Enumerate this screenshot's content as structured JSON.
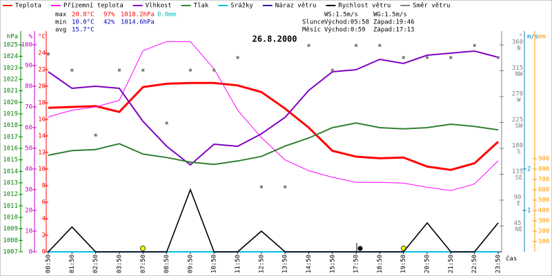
{
  "chart_data": {
    "type": "line",
    "title": "26.8.2000",
    "x_label": "čas",
    "categories": [
      "00:50",
      "01:50",
      "02:50",
      "03:50",
      "07:50",
      "08:50",
      "09:50",
      "10:50",
      "11:50",
      "12:50",
      "13:50",
      "14:50",
      "15:50",
      "17:50",
      "18:50",
      "19:50",
      "20:50",
      "21:50",
      "22:50",
      "23:50"
    ],
    "stats": [
      [
        "max",
        "20.8°C",
        "97%",
        "1018.2hPa",
        "0.0mm"
      ],
      [
        "min",
        "10.0°C",
        "42%",
        "1014.6hPa"
      ],
      [
        "avg",
        "15.7°C"
      ]
    ],
    "info": [
      [
        "WS:1.5m/s",
        "WG:1.5m/s"
      ],
      [
        "Slunce",
        "Východ:05:58",
        "Západ:19:46"
      ],
      [
        "Měsíc",
        "Východ:0:59",
        "Západ:17:13"
      ]
    ],
    "axes": {
      "p": {
        "unit": "hPa",
        "color": "#008000",
        "lim": [
          1007,
          1026.2
        ],
        "ticks": [
          1007,
          1008,
          1009,
          1010,
          1011,
          1012,
          1013,
          1014,
          1015,
          1016,
          1017,
          1018,
          1019,
          1020,
          1021,
          1022,
          1023,
          1024,
          1025
        ]
      },
      "h": {
        "unit": "%",
        "color": "#c000c0",
        "lim": [
          0,
          106.67
        ],
        "ticks": [
          0,
          10,
          20,
          30,
          40,
          50,
          60,
          70,
          80,
          90,
          100
        ]
      },
      "t": {
        "unit": "°C",
        "color": "#ff0000",
        "lim": [
          0,
          26.67
        ],
        "ticks": [
          0,
          2,
          4,
          6,
          8,
          10,
          12,
          14,
          16,
          18,
          20,
          22,
          24
        ]
      },
      "dir": {
        "unit": "°",
        "color": "#808080",
        "lim": [
          0,
          384
        ],
        "ticks": [
          45,
          90,
          135,
          180,
          225,
          270,
          315,
          360
        ],
        "tick_names": [
          "NE",
          "E",
          "SE",
          "S",
          "SW",
          "W",
          "NW",
          "N"
        ]
      },
      "ws": {
        "unit": "m/s",
        "color": "#0080c0",
        "lim": [
          0,
          5.33
        ],
        "ticks": [
          1,
          2
        ]
      },
      "mm": {
        "unit": "mm",
        "color": "#ff9900",
        "lim": [
          0,
          2133
        ],
        "ticks": [
          100,
          200,
          300,
          400,
          500,
          600,
          700,
          800,
          900
        ]
      }
    },
    "series": [
      {
        "name": "Teplota",
        "color": "#ff0000",
        "axis": "t",
        "width": 3,
        "values": [
          17.4,
          17.5,
          17.6,
          16.9,
          19.9,
          20.3,
          20.4,
          20.4,
          20.1,
          19.3,
          17.3,
          15.0,
          12.2,
          11.5,
          11.3,
          11.4,
          10.3,
          9.9,
          10.7,
          13.3
        ]
      },
      {
        "name": "Přízemní teplota",
        "color": "#ff00ff",
        "axis": "t",
        "width": 1,
        "values": [
          16.3,
          17.1,
          17.5,
          18.3,
          24.3,
          25.4,
          25.4,
          22.1,
          17.1,
          13.8,
          11.1,
          9.8,
          9.0,
          8.4,
          8.4,
          8.3,
          7.8,
          7.4,
          8.2,
          11.0
        ]
      },
      {
        "name": "Vlhkost",
        "color": "#8000c0",
        "axis": "h",
        "width": 2,
        "values": [
          87,
          79,
          80,
          79,
          63,
          51,
          42,
          52,
          51,
          57,
          65,
          78,
          87,
          88,
          93,
          91,
          95,
          96,
          97,
          94
        ]
      },
      {
        "name": "Tlak",
        "color": "#308030",
        "axis": "p",
        "width": 2,
        "values": [
          1015.4,
          1015.8,
          1015.9,
          1016.4,
          1015.5,
          1015.2,
          1014.8,
          1014.6,
          1014.9,
          1015.3,
          1016.2,
          1016.9,
          1017.8,
          1018.2,
          1017.8,
          1017.7,
          1017.8,
          1018.1,
          1017.9,
          1017.6
        ]
      },
      {
        "name": "Srážky",
        "color": "#00c0e0",
        "axis": "mm",
        "width": 2,
        "values": [
          0,
          0,
          0,
          0,
          0,
          0,
          0,
          0,
          0,
          0,
          0,
          0,
          0,
          0,
          0,
          0,
          0,
          0,
          0,
          0
        ]
      },
      {
        "name": "Náraz větru",
        "color": "#2020a0",
        "axis": "ws",
        "width": 1.5,
        "values": [
          0,
          0.6,
          0,
          0,
          0,
          0,
          1.5,
          0,
          0,
          0.5,
          0,
          0,
          0,
          0,
          0,
          0,
          0.7,
          0,
          0,
          0.7
        ]
      },
      {
        "name": "Rychlost větru",
        "color": "#000000",
        "axis": "ws",
        "width": 1.5,
        "values": [
          0,
          0.6,
          0,
          0,
          0,
          0,
          1.5,
          0,
          0,
          0.5,
          0,
          0,
          0,
          0,
          0,
          0,
          0.7,
          0,
          0,
          0.7
        ]
      },
      {
        "name": "Směr větru",
        "color": "#808080",
        "axis": "dir",
        "style": "points",
        "values": [
          344,
          316,
          203,
          316,
          316,
          224,
          316,
          316,
          338,
          113,
          113,
          359,
          316,
          359,
          359,
          338,
          338,
          338,
          359,
          338
        ]
      }
    ]
  }
}
